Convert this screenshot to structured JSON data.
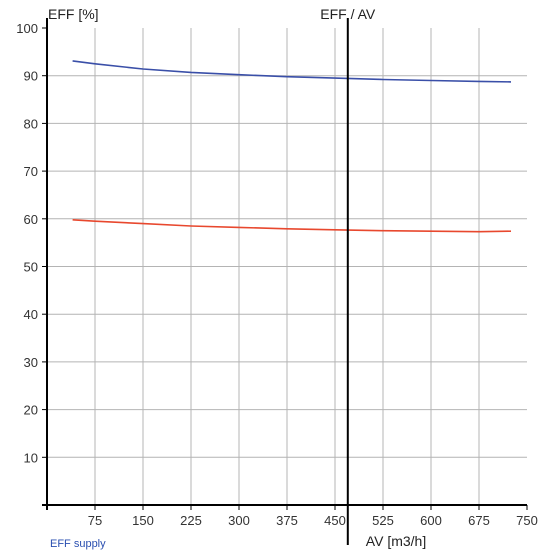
{
  "chart_data": {
    "type": "line",
    "y_axis_title": "EFF [%]",
    "x_axis_title": "AV [m3/h]",
    "marker_label": "EFF / AV",
    "marker_x": 470,
    "legend": "EFF supply",
    "xlim": [
      0,
      750
    ],
    "ylim": [
      0,
      100
    ],
    "x_ticks": [
      75,
      150,
      225,
      300,
      375,
      450,
      525,
      600,
      675,
      750
    ],
    "y_ticks": [
      10,
      20,
      30,
      40,
      50,
      60,
      70,
      80,
      90,
      100
    ],
    "grid": true,
    "series": [
      {
        "color": "#3a4fa8",
        "points": [
          [
            40,
            93.1
          ],
          [
            75,
            92.5
          ],
          [
            150,
            91.4
          ],
          [
            225,
            90.7
          ],
          [
            300,
            90.2
          ],
          [
            375,
            89.8
          ],
          [
            450,
            89.5
          ],
          [
            525,
            89.2
          ],
          [
            600,
            89.0
          ],
          [
            675,
            88.8
          ],
          [
            725,
            88.7
          ]
        ]
      },
      {
        "color": "#e8482e",
        "points": [
          [
            40,
            59.8
          ],
          [
            75,
            59.5
          ],
          [
            150,
            59.0
          ],
          [
            225,
            58.5
          ],
          [
            300,
            58.2
          ],
          [
            375,
            57.9
          ],
          [
            450,
            57.7
          ],
          [
            525,
            57.5
          ],
          [
            600,
            57.4
          ],
          [
            675,
            57.3
          ],
          [
            725,
            57.4
          ]
        ]
      }
    ]
  }
}
